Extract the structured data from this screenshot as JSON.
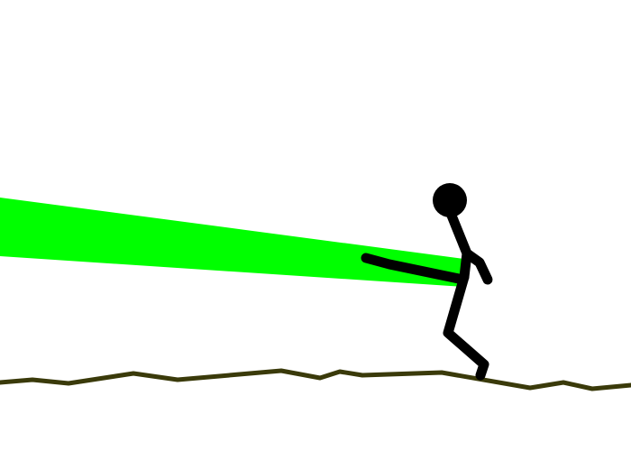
{
  "scene": {
    "background_color": "#ffffff",
    "terrain_color": "#3a3a0a",
    "stickman_color": "#000000",
    "beam_color": "#00ff00",
    "beam_active": true
  }
}
